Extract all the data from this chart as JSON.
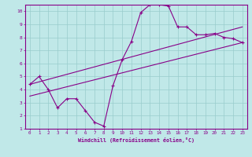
{
  "xlabel": "Windchill (Refroidissement éolien,°C)",
  "bg_color": "#c0e8e8",
  "line_color": "#880088",
  "grid_color": "#99cccc",
  "xlim": [
    -0.5,
    23.5
  ],
  "ylim": [
    1,
    10.5
  ],
  "xticks": [
    0,
    1,
    2,
    3,
    4,
    5,
    6,
    7,
    8,
    9,
    10,
    11,
    12,
    13,
    14,
    15,
    16,
    17,
    18,
    19,
    20,
    21,
    22,
    23
  ],
  "yticks": [
    1,
    2,
    3,
    4,
    5,
    6,
    7,
    8,
    9,
    10
  ],
  "line1_x": [
    0,
    1,
    2,
    3,
    4,
    5,
    6,
    7,
    8,
    9,
    10,
    11,
    12,
    13,
    14,
    15,
    16,
    17,
    18,
    19,
    20,
    21,
    22,
    23
  ],
  "line1_y": [
    4.4,
    5.0,
    4.0,
    2.6,
    3.3,
    3.3,
    2.4,
    1.5,
    1.2,
    4.3,
    6.3,
    7.7,
    9.9,
    10.5,
    10.5,
    10.4,
    8.8,
    8.8,
    8.2,
    8.2,
    8.3,
    8.0,
    7.9,
    7.6
  ],
  "trend1_x": [
    0,
    23
  ],
  "trend1_y": [
    4.4,
    8.8
  ],
  "trend2_x": [
    0,
    23
  ],
  "trend2_y": [
    3.5,
    7.6
  ]
}
